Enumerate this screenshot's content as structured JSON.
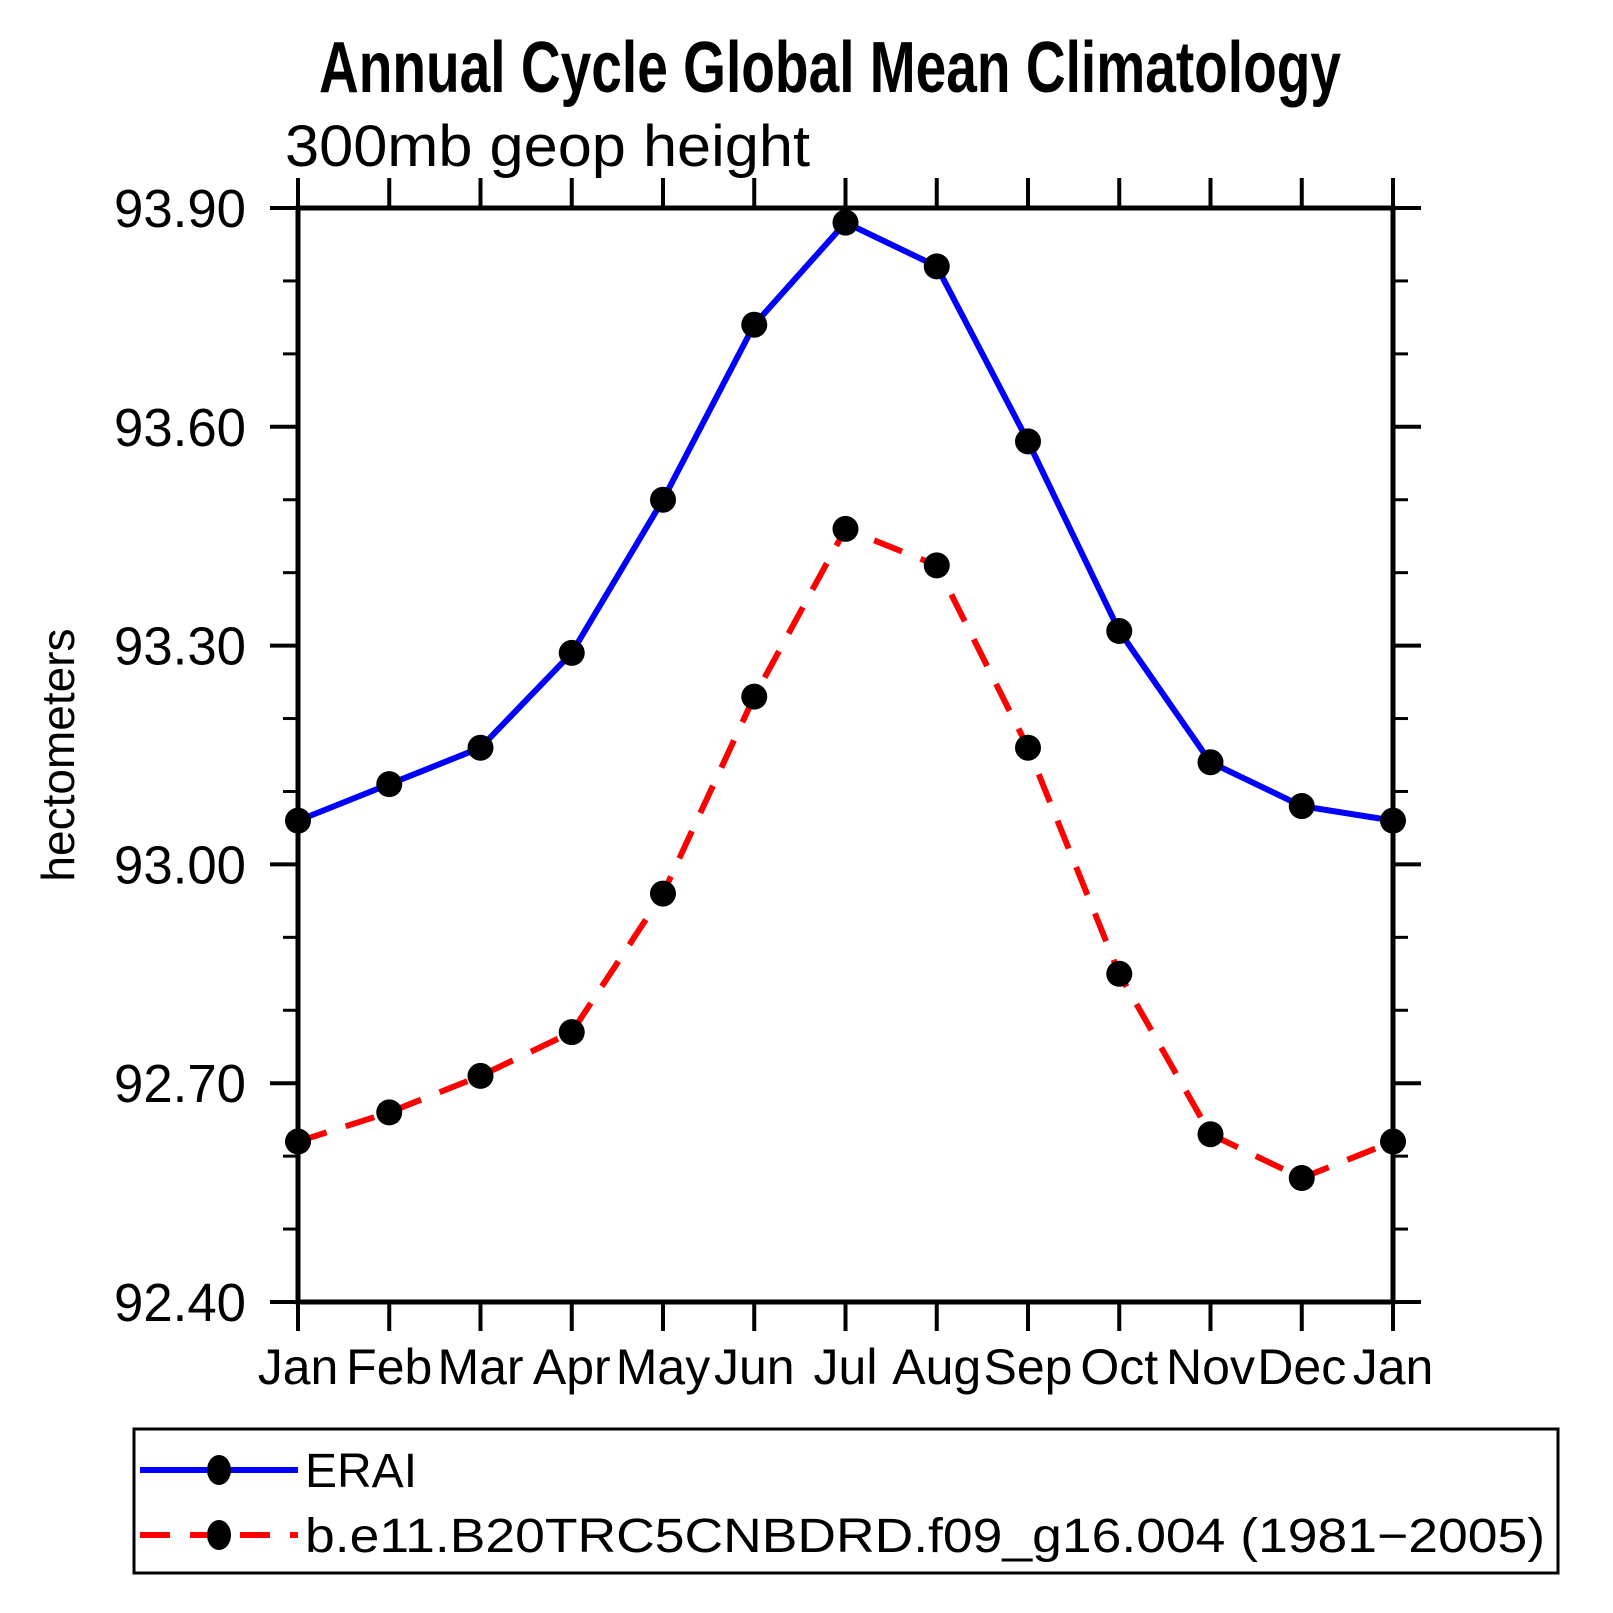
{
  "header": {
    "title": "Annual Cycle Global Mean Climatology",
    "subtitle": "300mb geop height"
  },
  "legend": {
    "position": "bottom-box",
    "items": [
      {
        "label": "ERAI",
        "line_color": "#0000ff",
        "line_style": "solid",
        "marker": "black-dot"
      },
      {
        "label": "b.e11.B20TRC5CNBDRD.f09_g16.004 (1981−2005)",
        "line_color": "#ff0000",
        "line_style": "dashed",
        "marker": "black-dot"
      }
    ]
  },
  "chart_data": {
    "type": "line",
    "title": "Annual Cycle Global Mean Climatology",
    "subtitle": "300mb geop height",
    "xlabel": "",
    "ylabel": "hectometers",
    "categories": [
      "Jan",
      "Feb",
      "Mar",
      "Apr",
      "May",
      "Jun",
      "Jul",
      "Aug",
      "Sep",
      "Oct",
      "Nov",
      "Dec",
      "Jan"
    ],
    "ylim": [
      92.4,
      93.9
    ],
    "y_major_ticks": [
      93.9,
      93.6,
      93.3,
      93.0,
      92.7,
      92.4
    ],
    "y_tick_labels": [
      "93.90",
      "93.60",
      "93.30",
      "93.00",
      "92.70",
      "92.40"
    ],
    "y_minor_step": 0.1,
    "grid": false,
    "legend_position": "bottom-box",
    "marker_color": "#000000",
    "axis_color": "#000000",
    "series": [
      {
        "name": "ERAI",
        "color": "#0000ff",
        "line_style": "solid",
        "values": [
          93.06,
          93.11,
          93.16,
          93.29,
          93.5,
          93.74,
          93.88,
          93.82,
          93.58,
          93.32,
          93.14,
          93.08,
          93.06
        ]
      },
      {
        "name": "b.e11.B20TRC5CNBDRD.f09_g16.004 (1981−2005)",
        "color": "#ff0000",
        "line_style": "dashed",
        "values": [
          92.62,
          92.66,
          92.71,
          92.77,
          92.96,
          93.23,
          93.46,
          93.41,
          93.16,
          92.85,
          92.63,
          92.57,
          92.62
        ]
      }
    ]
  }
}
